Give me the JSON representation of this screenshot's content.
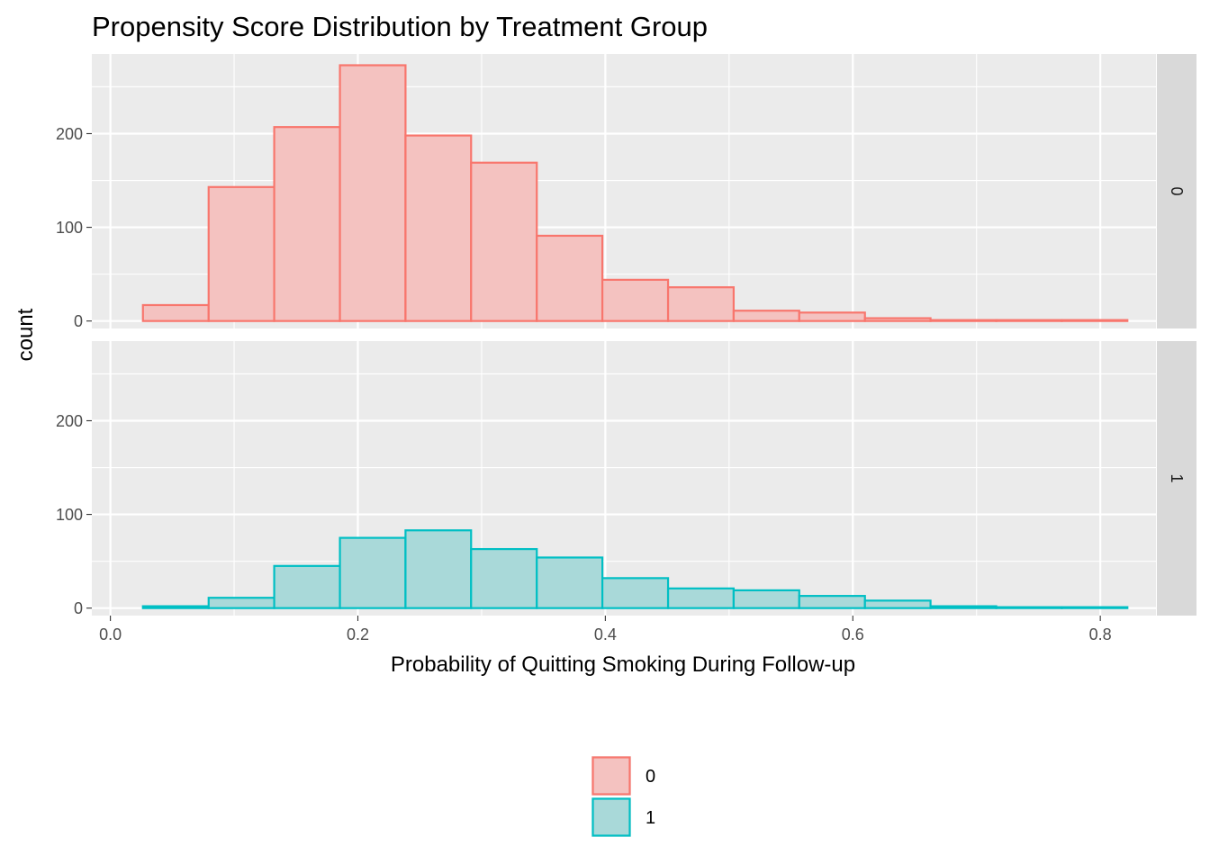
{
  "chart_data": {
    "type": "bar",
    "subtype": "faceted-histogram",
    "title": "Propensity Score Distribution by Treatment Group",
    "xlabel": "Probability of Quitting Smoking During Follow-up",
    "ylabel": "count",
    "xlim": [
      -0.015,
      0.845
    ],
    "ylim": [
      -8,
      285
    ],
    "x_ticks": [
      0.0,
      0.2,
      0.4,
      0.6,
      0.8
    ],
    "x_tick_labels": [
      "0.0",
      "0.2",
      "0.4",
      "0.6",
      "0.8"
    ],
    "y_ticks": [
      0,
      100,
      200
    ],
    "y_tick_labels": [
      "0",
      "100",
      "200"
    ],
    "grid": true,
    "legend_position": "bottom",
    "bin_edges": [
      0.0263,
      0.0794,
      0.1324,
      0.1855,
      0.2385,
      0.2915,
      0.3446,
      0.3976,
      0.4507,
      0.5037,
      0.5567,
      0.6098,
      0.6628,
      0.7159,
      0.7689,
      0.8219
    ],
    "series": [
      {
        "name": "0",
        "facet_label": "0",
        "color": "#F8766D",
        "fill": "#F4C2C0",
        "values": [
          17,
          143,
          207,
          273,
          198,
          169,
          91,
          44,
          36,
          11,
          9,
          3,
          1,
          1,
          1
        ]
      },
      {
        "name": "1",
        "facet_label": "1",
        "color": "#00BFC4",
        "fill": "#A9D9D9",
        "values": [
          2,
          11,
          45,
          75,
          83,
          63,
          54,
          32,
          21,
          19,
          13,
          8,
          2,
          1,
          1
        ]
      }
    ]
  }
}
